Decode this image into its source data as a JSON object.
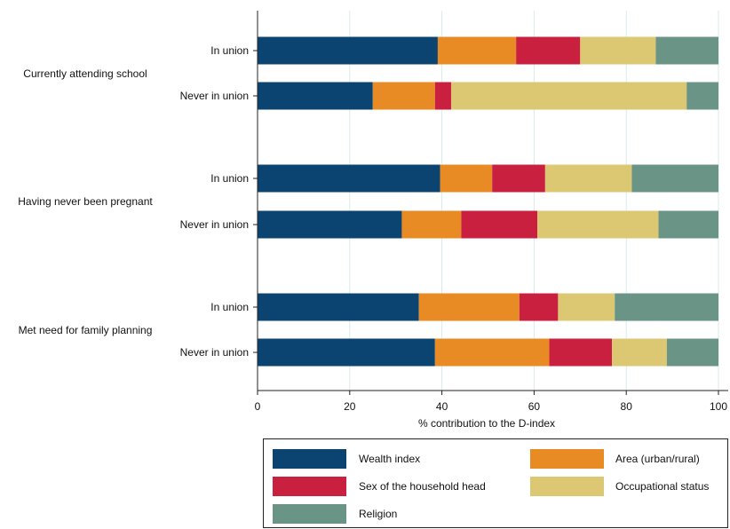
{
  "chart_data": {
    "type": "bar",
    "orientation": "horizontal",
    "stacked": true,
    "xlabel": "% contribution to the D-index",
    "xlim": [
      0,
      100
    ],
    "xticks": [
      0,
      20,
      40,
      60,
      80,
      100
    ],
    "grid": true,
    "legend_position": "bottom",
    "groups": [
      {
        "label": "Currently attending school",
        "rows": [
          {
            "label": "In union",
            "values": [
              39.1,
              17.0,
              13.9,
              16.4,
              13.6
            ]
          },
          {
            "label": "Never in union",
            "values": [
              25.0,
              13.5,
              3.5,
              51.1,
              6.9
            ]
          }
        ]
      },
      {
        "label": "Having never been pregnant",
        "rows": [
          {
            "label": "In union",
            "values": [
              39.6,
              11.3,
              11.5,
              18.8,
              18.8
            ]
          },
          {
            "label": "Never in union",
            "values": [
              31.3,
              12.9,
              16.5,
              26.3,
              13.0
            ]
          }
        ]
      },
      {
        "label": "Met need for family planning",
        "rows": [
          {
            "label": "In union",
            "values": [
              35.0,
              21.8,
              8.4,
              12.3,
              22.5
            ]
          },
          {
            "label": "Never in union",
            "values": [
              38.5,
              24.8,
              13.6,
              11.9,
              11.2
            ]
          }
        ]
      }
    ],
    "series": [
      {
        "name": "Wealth index",
        "color": "#0b4471"
      },
      {
        "name": "Area (urban/rural)",
        "color": "#e88b24"
      },
      {
        "name": "Sex of the household head",
        "color": "#c9203f"
      },
      {
        "name": "Occupational status",
        "color": "#dcc873"
      },
      {
        "name": "Religion",
        "color": "#6a9486"
      }
    ]
  }
}
